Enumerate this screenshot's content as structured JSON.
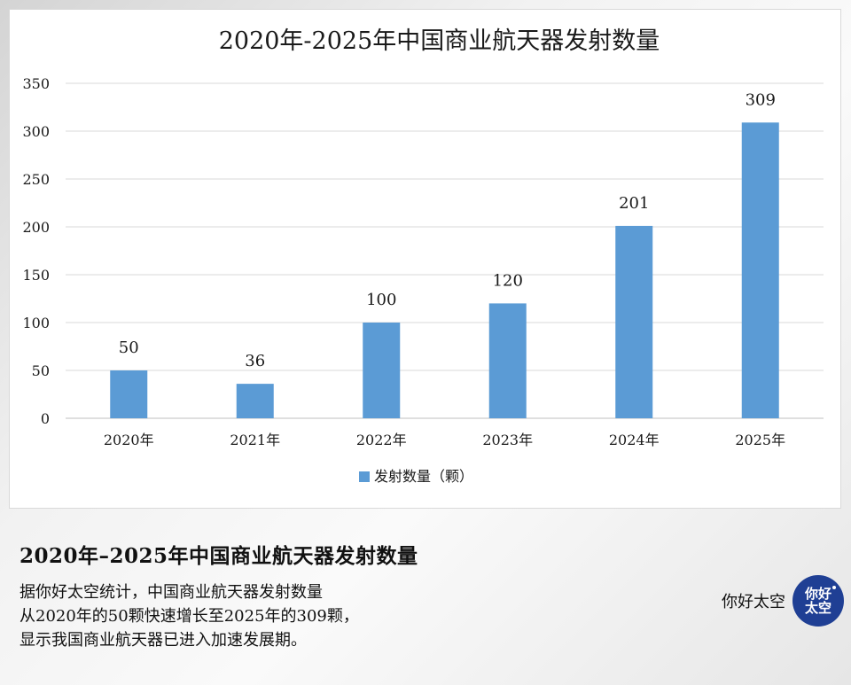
{
  "chart_data": {
    "type": "bar",
    "title": "2020年-2025年中国商业航天器发射数量",
    "categories": [
      "2020年",
      "2021年",
      "2022年",
      "2023年",
      "2024年",
      "2025年"
    ],
    "series": [
      {
        "name": "发射数量（颗）",
        "values": [
          50,
          36,
          100,
          120,
          201,
          309
        ]
      }
    ],
    "y_ticks": [
      0,
      50,
      100,
      150,
      200,
      250,
      300,
      350
    ],
    "ylim": [
      0,
      350
    ],
    "xlabel": "",
    "ylabel": "",
    "grid": true,
    "legend_position": "bottom",
    "colors": {
      "bar": "#5b9bd5",
      "grid": "#d9d9d9",
      "text": "#1a1a1a"
    },
    "data_labels": true
  },
  "caption": {
    "title": "2020年–2025年中国商业航天器发射数量",
    "lines": [
      "据你好太空统计，中国商业航天器发射数量",
      "从2020年的50颗快速增长至2025年的309颗，",
      "显示我国商业航天器已进入加速发展期。"
    ]
  },
  "brand": {
    "name": "你好太空",
    "logo_text": "你好太空",
    "logo_color": "#1f3f94",
    "logo_icon": "brand-logo-icon"
  }
}
